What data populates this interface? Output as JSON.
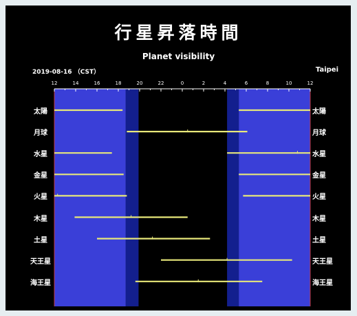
{
  "header": {
    "title": "行星昇落時間",
    "subtitle": "Planet visibility",
    "date": "2019-08-16 （CST）",
    "location": "Taipei"
  },
  "colors": {
    "background": "#000000",
    "day": "#3a3fd8",
    "twilight": "#131f8e",
    "bar": "#e8e87a",
    "tick": "#ffffff"
  },
  "chart_data": {
    "type": "bar",
    "title": "行星昇落時間",
    "subtitle": "Planet visibility",
    "x_tick_labels": [
      "12",
      "14",
      "16",
      "18",
      "20",
      "22",
      "0",
      "2",
      "4",
      "6",
      "8",
      "10",
      "12"
    ],
    "xlim_hours_from_noon": [
      0,
      24
    ],
    "shading": {
      "day_until_hours_from_noon": 6.7,
      "dusk_end_hours_from_noon": 7.9,
      "dawn_start_hours_from_noon": 16.2,
      "day_from_hours_from_noon": 17.3
    },
    "planets": [
      {
        "name": "太陽",
        "segments": [
          [
            0,
            6.4
          ],
          [
            17.3,
            24
          ]
        ],
        "transit": null
      },
      {
        "name": "月球",
        "segments": [
          [
            6.8,
            18.1
          ]
        ],
        "transit": 12.5
      },
      {
        "name": "水星",
        "segments": [
          [
            0,
            5.4
          ],
          [
            16.2,
            24
          ]
        ],
        "transit": 22.8
      },
      {
        "name": "金星",
        "segments": [
          [
            0,
            6.5
          ],
          [
            17.3,
            24
          ]
        ],
        "transit": null
      },
      {
        "name": "火星",
        "segments": [
          [
            0,
            6.8
          ],
          [
            17.7,
            24
          ]
        ],
        "transit": 0.3
      },
      {
        "name": "木星",
        "segments": [
          [
            1.9,
            12.5
          ]
        ],
        "transit": 7.2
      },
      {
        "name": "土星",
        "segments": [
          [
            4.0,
            14.6
          ]
        ],
        "transit": 9.2
      },
      {
        "name": "天王星",
        "segments": [
          [
            10.0,
            22.3
          ]
        ],
        "transit": 16.2
      },
      {
        "name": "海王星",
        "segments": [
          [
            7.6,
            19.5
          ]
        ],
        "transit": 13.5
      }
    ]
  }
}
